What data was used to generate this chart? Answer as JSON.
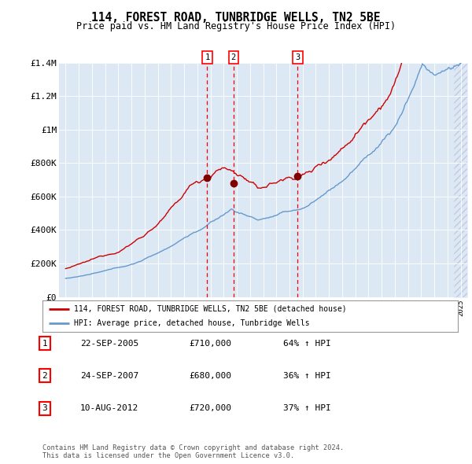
{
  "title": "114, FOREST ROAD, TUNBRIDGE WELLS, TN2 5BE",
  "subtitle": "Price paid vs. HM Land Registry's House Price Index (HPI)",
  "plot_bg_color": "#dce9f5",
  "hpi_color": "#6699cc",
  "price_color": "#cc0000",
  "sale1_date": 2005.75,
  "sale1_price": 710000,
  "sale2_date": 2007.75,
  "sale2_price": 680000,
  "sale3_date": 2012.62,
  "sale3_price": 720000,
  "ylim": [
    0,
    1400000
  ],
  "yticks": [
    0,
    200000,
    400000,
    600000,
    800000,
    1000000,
    1200000,
    1400000
  ],
  "ytick_labels": [
    "£0",
    "£200K",
    "£400K",
    "£600K",
    "£800K",
    "£1M",
    "£1.2M",
    "£1.4M"
  ],
  "xlim_start": 1994.5,
  "xlim_end": 2025.5,
  "legend_house": "114, FOREST ROAD, TUNBRIDGE WELLS, TN2 5BE (detached house)",
  "legend_hpi": "HPI: Average price, detached house, Tunbridge Wells",
  "table": [
    {
      "num": "1",
      "date": "22-SEP-2005",
      "price": "£710,000",
      "hpi": "64% ↑ HPI"
    },
    {
      "num": "2",
      "date": "24-SEP-2007",
      "price": "£680,000",
      "hpi": "36% ↑ HPI"
    },
    {
      "num": "3",
      "date": "10-AUG-2012",
      "price": "£720,000",
      "hpi": "37% ↑ HPI"
    }
  ],
  "footer": "Contains HM Land Registry data © Crown copyright and database right 2024.\nThis data is licensed under the Open Government Licence v3.0."
}
